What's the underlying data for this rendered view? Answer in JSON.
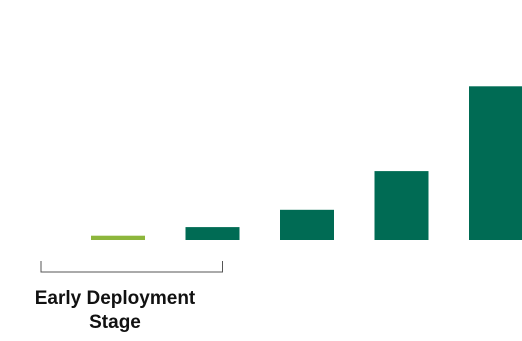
{
  "chart_data": {
    "type": "bar",
    "categories": [
      "",
      "",
      "",
      "",
      ""
    ],
    "values": [
      3,
      9,
      21,
      48,
      107
    ],
    "colors": [
      "#8DB63C",
      "#006B54",
      "#006B54",
      "#006B54",
      "#006B54"
    ],
    "ylim": [
      0,
      110
    ],
    "grid": false,
    "axes_visible": false,
    "annotations": [
      {
        "text_lines": [
          "Early Deployment",
          "Stage"
        ],
        "bracket_covers_categories": [
          0,
          1
        ]
      }
    ]
  }
}
